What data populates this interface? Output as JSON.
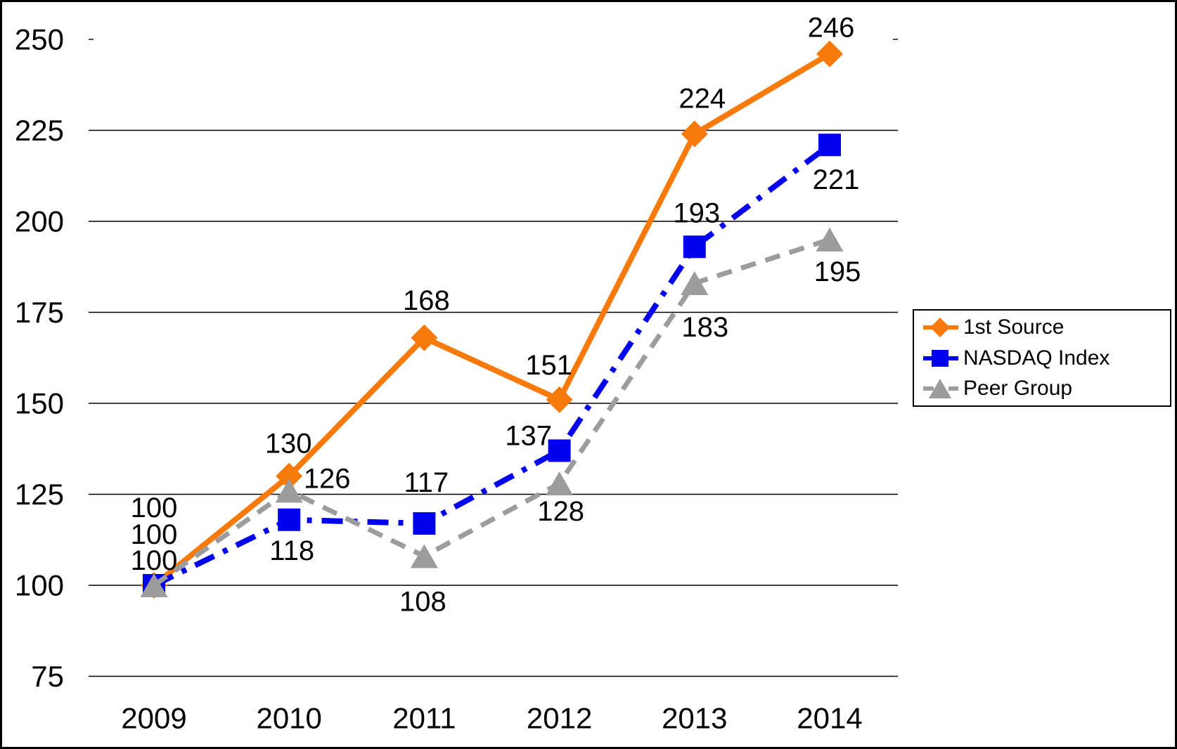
{
  "figure": {
    "background": "#FFFFFF",
    "border_color": "#000000",
    "text_color": "#000000",
    "gridline_color": "#000000"
  },
  "chart_data": {
    "type": "line",
    "title": "",
    "xlabel": "",
    "ylabel": "",
    "x": [
      "2009",
      "2010",
      "2011",
      "2012",
      "2013",
      "2014"
    ],
    "series": [
      {
        "name": "1st Source",
        "color": "#F87A0D",
        "marker": "diamond",
        "line_style": "solid",
        "line_width": 8,
        "values": [
          100,
          130,
          168,
          151,
          224,
          246
        ],
        "label_offsets": [
          [
            0,
            -110
          ],
          [
            -1,
            -46
          ],
          [
            3,
            -53
          ],
          [
            -15,
            -49
          ],
          [
            11,
            -50
          ],
          [
            2,
            -37
          ]
        ]
      },
      {
        "name": "NASDAQ Index",
        "color": "#0000EF",
        "marker": "square",
        "line_style": "dash-dot",
        "line_width": 8,
        "values": [
          100,
          118,
          117,
          137,
          193,
          221
        ],
        "label_offsets": [
          [
            0,
            -72
          ],
          [
            4,
            44
          ],
          [
            3,
            -58
          ],
          [
            -44,
            -21
          ],
          [
            3,
            -48
          ],
          [
            9,
            50
          ]
        ]
      },
      {
        "name": "Peer Group",
        "color": "#9C9C9C",
        "marker": "triangle",
        "line_style": "dashed",
        "line_width": 7,
        "values": [
          100,
          126,
          108,
          128,
          183,
          195
        ],
        "label_offsets": [
          [
            0,
            -35
          ],
          [
            54,
            -17
          ],
          [
            -2,
            65
          ],
          [
            2,
            40
          ],
          [
            15,
            63
          ],
          [
            11,
            46
          ]
        ]
      }
    ],
    "ylim": [
      75,
      250
    ],
    "ytick_step": 25,
    "yticks": [
      75,
      100,
      125,
      150,
      175,
      200,
      225,
      250
    ],
    "grid": "horizontal",
    "data_labels": true,
    "legend_position": "right"
  }
}
